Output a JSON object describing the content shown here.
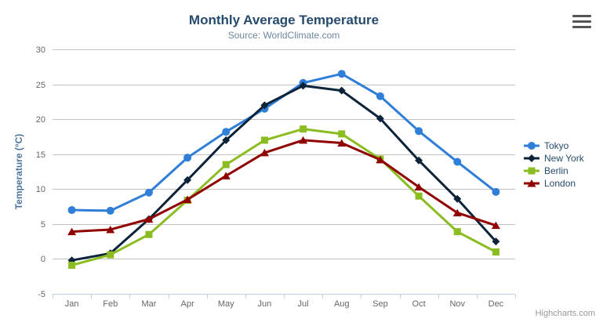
{
  "credits": {
    "label": "Highcharts.com"
  },
  "icons": {
    "export_menu": "hamburger-menu"
  },
  "colors": {
    "title": "#274b6d",
    "subtitle": "#6d869f",
    "axis_title": "#4d759e",
    "tick_label": "#666666",
    "grid_line": "#c0c0c0",
    "axis_line": "#c0d0e0",
    "legend_text": "#274b6d",
    "credits": "#999999"
  },
  "chart_data": {
    "type": "line",
    "title": "Monthly Average Temperature",
    "subtitle": "Source: WorldClimate.com",
    "xlabel": "",
    "ylabel": "Temperature (°C)",
    "ylim": [
      -5,
      30
    ],
    "ytick_interval": 5,
    "grid": true,
    "legend_position": "right",
    "categories": [
      "Jan",
      "Feb",
      "Mar",
      "Apr",
      "May",
      "Jun",
      "Jul",
      "Aug",
      "Sep",
      "Oct",
      "Nov",
      "Dec"
    ],
    "series": [
      {
        "name": "Tokyo",
        "color": "#2f7ed8",
        "marker": "circle",
        "values": [
          7.0,
          6.9,
          9.5,
          14.5,
          18.2,
          21.5,
          25.2,
          26.5,
          23.3,
          18.3,
          13.9,
          9.6
        ]
      },
      {
        "name": "New York",
        "color": "#0d233a",
        "marker": "diamond",
        "values": [
          -0.2,
          0.8,
          5.7,
          11.3,
          17.0,
          22.0,
          24.8,
          24.1,
          20.1,
          14.1,
          8.6,
          2.5
        ]
      },
      {
        "name": "Berlin",
        "color": "#8bbc21",
        "marker": "square",
        "values": [
          -0.9,
          0.6,
          3.5,
          8.4,
          13.5,
          17.0,
          18.6,
          17.9,
          14.3,
          9.0,
          3.9,
          1.0
        ]
      },
      {
        "name": "London",
        "color": "#910000",
        "marker": "triangle",
        "values": [
          3.9,
          4.2,
          5.7,
          8.5,
          11.9,
          15.2,
          17.0,
          16.6,
          14.2,
          10.3,
          6.6,
          4.8
        ]
      }
    ]
  }
}
